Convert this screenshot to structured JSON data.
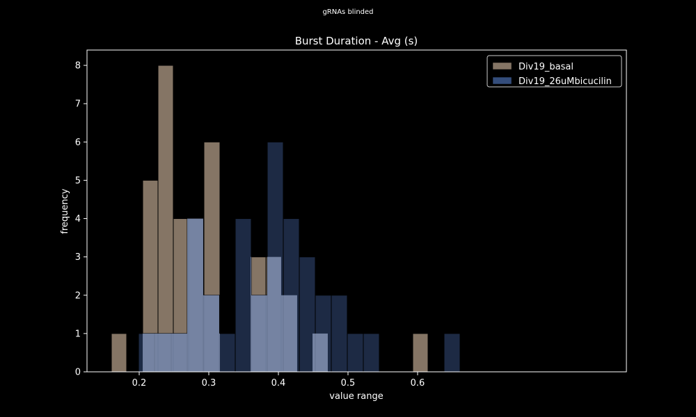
{
  "suptitle": "gRNAs blinded",
  "chart_data": {
    "type": "bar",
    "title": "Burst Duration - Avg (s)",
    "xlabel": "value range",
    "ylabel": "frequency",
    "xlim": [
      0.125,
      0.9
    ],
    "ylim": [
      0,
      8.4
    ],
    "xticks": [
      0.2,
      0.3,
      0.4,
      0.5,
      0.6
    ],
    "xtick_labels": [
      "0.2",
      "0.3",
      "0.4",
      "0.5",
      "0.6"
    ],
    "yticks": [
      0,
      1,
      2,
      3,
      4,
      5,
      6,
      7,
      8
    ],
    "ytick_labels": [
      "0",
      "1",
      "2",
      "3",
      "4",
      "5",
      "6",
      "7",
      "8"
    ],
    "grid": false,
    "legend_position": "top-right",
    "series": [
      {
        "name": "Div19_basal",
        "color": "#857565",
        "bins": [
          {
            "x0": 0.16,
            "x1": 0.182,
            "value": 1
          },
          {
            "x0": 0.205,
            "x1": 0.227,
            "value": 5
          },
          {
            "x0": 0.227,
            "x1": 0.249,
            "value": 8
          },
          {
            "x0": 0.249,
            "x1": 0.271,
            "value": 4
          },
          {
            "x0": 0.271,
            "x1": 0.293,
            "value": 4
          },
          {
            "x0": 0.293,
            "x1": 0.316,
            "value": 6
          },
          {
            "x0": 0.36,
            "x1": 0.382,
            "value": 3
          },
          {
            "x0": 0.382,
            "x1": 0.404,
            "value": 3
          },
          {
            "x0": 0.404,
            "x1": 0.427,
            "value": 2
          },
          {
            "x0": 0.449,
            "x1": 0.471,
            "value": 1
          },
          {
            "x0": 0.593,
            "x1": 0.615,
            "value": 1
          }
        ]
      },
      {
        "name": "Div19_26uMbicucilin",
        "color": "#344d7b",
        "bins": [
          {
            "x0": 0.199,
            "x1": 0.222,
            "value": 1
          },
          {
            "x0": 0.222,
            "x1": 0.246,
            "value": 1
          },
          {
            "x0": 0.246,
            "x1": 0.269,
            "value": 1
          },
          {
            "x0": 0.269,
            "x1": 0.292,
            "value": 4
          },
          {
            "x0": 0.292,
            "x1": 0.315,
            "value": 2
          },
          {
            "x0": 0.315,
            "x1": 0.338,
            "value": 1
          },
          {
            "x0": 0.338,
            "x1": 0.361,
            "value": 4
          },
          {
            "x0": 0.361,
            "x1": 0.384,
            "value": 2
          },
          {
            "x0": 0.384,
            "x1": 0.407,
            "value": 6
          },
          {
            "x0": 0.407,
            "x1": 0.43,
            "value": 4
          },
          {
            "x0": 0.43,
            "x1": 0.453,
            "value": 3
          },
          {
            "x0": 0.453,
            "x1": 0.476,
            "value": 2
          },
          {
            "x0": 0.476,
            "x1": 0.499,
            "value": 2
          },
          {
            "x0": 0.499,
            "x1": 0.522,
            "value": 1
          },
          {
            "x0": 0.522,
            "x1": 0.545,
            "value": 1
          },
          {
            "x0": 0.638,
            "x1": 0.661,
            "value": 1
          }
        ]
      }
    ]
  }
}
